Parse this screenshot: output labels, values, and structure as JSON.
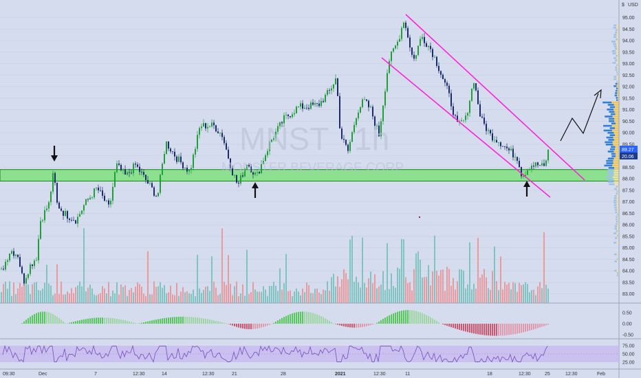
{
  "chart_data": {
    "type": "candlestick",
    "symbol": "MNST",
    "interval": "1h",
    "company": "MONSTER BEVERAGE CORP",
    "currency": "USD",
    "price_ticks": [
      "95.00",
      "94.50",
      "94.00",
      "93.50",
      "93.00",
      "92.50",
      "92.00",
      "91.50",
      "91.00",
      "90.50",
      "90.00",
      "89.50",
      "89.00",
      "88.50",
      "88.00",
      "87.50",
      "87.00",
      "86.50",
      "86.00",
      "85.50",
      "85.00",
      "84.50",
      "84.00",
      "83.50",
      "83.00"
    ],
    "ylim": [
      82.6,
      95.3
    ],
    "x_tick_labels": [
      "09:30",
      "Dec",
      "7",
      "12:30",
      "14",
      "12:30",
      "21",
      "28",
      "2021",
      "12:30",
      "11",
      "18",
      "12:30",
      "25",
      "12:30",
      "Feb"
    ],
    "last_price": "89.27",
    "price_tag_2": "20.06",
    "macd_ticks": [
      "0.50",
      "0.00",
      "-0.50"
    ],
    "rsi_ticks": [
      "75.00",
      "50.00",
      "25.00"
    ],
    "support_zone": [
      87.9,
      88.4
    ],
    "channel": {
      "upper": [
        [
          590,
          95.15
        ],
        [
          850,
          88.0
        ]
      ],
      "lower": [
        [
          555,
          93.2
        ],
        [
          800,
          87.0
        ]
      ]
    },
    "series": [
      {
        "name": "price",
        "ohlc_keypoints": [
          [
            0,
            83.9
          ],
          [
            14,
            84.9
          ],
          [
            25,
            84.7
          ],
          [
            33,
            83.5
          ],
          [
            42,
            84.2
          ],
          [
            52,
            84.6
          ],
          [
            58,
            86.2
          ],
          [
            70,
            86.9
          ],
          [
            78,
            88.5
          ],
          [
            80,
            87.0
          ],
          [
            92,
            86.5
          ],
          [
            110,
            86.2
          ],
          [
            122,
            86.9
          ],
          [
            140,
            87.6
          ],
          [
            158,
            86.7
          ],
          [
            168,
            88.6
          ],
          [
            182,
            88.1
          ],
          [
            196,
            88.6
          ],
          [
            212,
            87.9
          ],
          [
            228,
            87.2
          ],
          [
            240,
            89.6
          ],
          [
            256,
            88.9
          ],
          [
            275,
            88.3
          ],
          [
            290,
            90.3
          ],
          [
            310,
            90.3
          ],
          [
            322,
            89.9
          ],
          [
            337,
            88.3
          ],
          [
            345,
            87.7
          ],
          [
            358,
            88.7
          ],
          [
            372,
            88.1
          ],
          [
            392,
            89.6
          ],
          [
            412,
            90.6
          ],
          [
            432,
            91.1
          ],
          [
            462,
            91.2
          ],
          [
            478,
            91.8
          ],
          [
            488,
            92.4
          ],
          [
            494,
            89.9
          ],
          [
            505,
            89.2
          ],
          [
            518,
            90.9
          ],
          [
            528,
            91.4
          ],
          [
            538,
            91.0
          ],
          [
            550,
            89.9
          ],
          [
            564,
            93.1
          ],
          [
            578,
            94.0
          ],
          [
            586,
            94.9
          ],
          [
            592,
            94.2
          ],
          [
            600,
            93.1
          ],
          [
            612,
            94.2
          ],
          [
            626,
            93.6
          ],
          [
            636,
            92.9
          ],
          [
            650,
            91.8
          ],
          [
            664,
            90.3
          ],
          [
            676,
            90.6
          ],
          [
            688,
            92.3
          ],
          [
            698,
            90.6
          ],
          [
            712,
            89.9
          ],
          [
            726,
            89.6
          ],
          [
            740,
            89.2
          ],
          [
            752,
            88.9
          ],
          [
            758,
            88.1
          ],
          [
            770,
            88.6
          ],
          [
            782,
            88.6
          ],
          [
            790,
            88.5
          ],
          [
            797,
            89.3
          ]
        ]
      }
    ],
    "annotations": [
      "down-arrow",
      "up-arrow",
      "up-arrow",
      "projection-path"
    ]
  }
}
